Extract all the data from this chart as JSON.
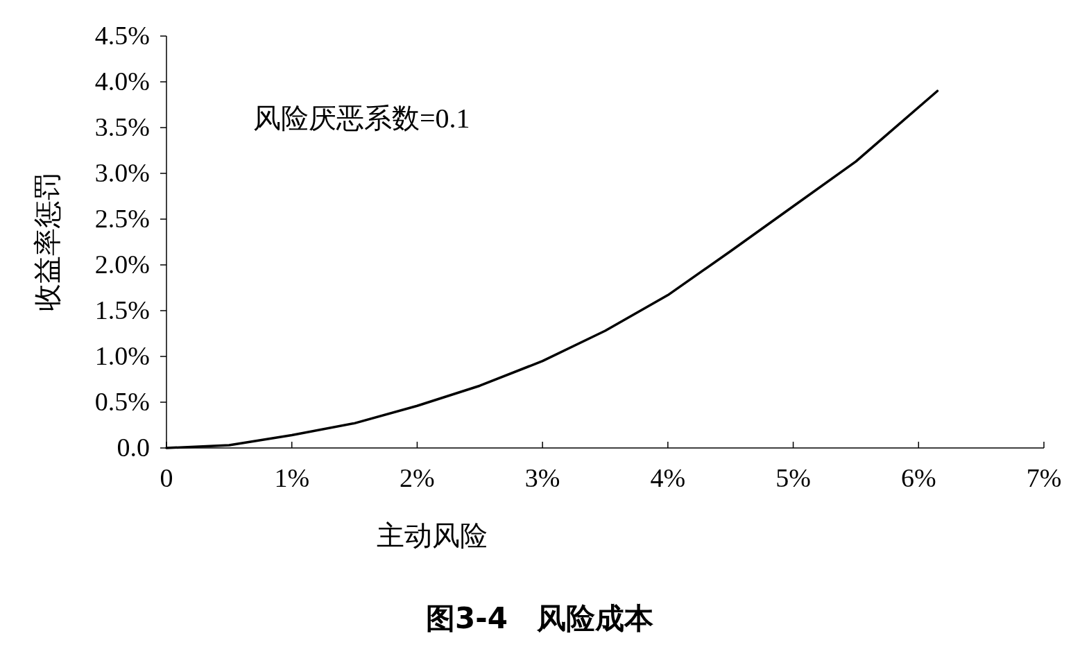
{
  "chart_data": {
    "type": "line",
    "title": "图3-4　风险成本",
    "xlabel": "主动风险",
    "ylabel": "收益率惩罚",
    "annotations": [
      "风险厌恶系数=0.1"
    ],
    "xlim": [
      0,
      7
    ],
    "ylim": [
      0,
      4.5
    ],
    "xticks": [
      {
        "value": 0,
        "label": "0"
      },
      {
        "value": 1,
        "label": "1%"
      },
      {
        "value": 2,
        "label": "2%"
      },
      {
        "value": 3,
        "label": "3%"
      },
      {
        "value": 4,
        "label": "4%"
      },
      {
        "value": 5,
        "label": "5%"
      },
      {
        "value": 6,
        "label": "6%"
      },
      {
        "value": 7,
        "label": "7%"
      }
    ],
    "yticks": [
      {
        "value": 0,
        "label": "0.0"
      },
      {
        "value": 0.5,
        "label": "0.5%"
      },
      {
        "value": 1,
        "label": "1.0%"
      },
      {
        "value": 1.5,
        "label": "1.5%"
      },
      {
        "value": 2,
        "label": "2.0%"
      },
      {
        "value": 2.5,
        "label": "2.5%"
      },
      {
        "value": 3,
        "label": "3.0%"
      },
      {
        "value": 3.5,
        "label": "3.5%"
      },
      {
        "value": 4,
        "label": "4.0%"
      },
      {
        "value": 4.5,
        "label": "4.5%"
      }
    ],
    "x": [
      0,
      0.5,
      1,
      1.5,
      2,
      2.5,
      3,
      3.5,
      4,
      4.5,
      5,
      5.5,
      6.15
    ],
    "series": [
      {
        "color": "#000000",
        "values": [
          0,
          0.03,
          0.14,
          0.27,
          0.46,
          0.68,
          0.95,
          1.28,
          1.67,
          2.15,
          2.64,
          3.13,
          3.9
        ]
      }
    ]
  }
}
